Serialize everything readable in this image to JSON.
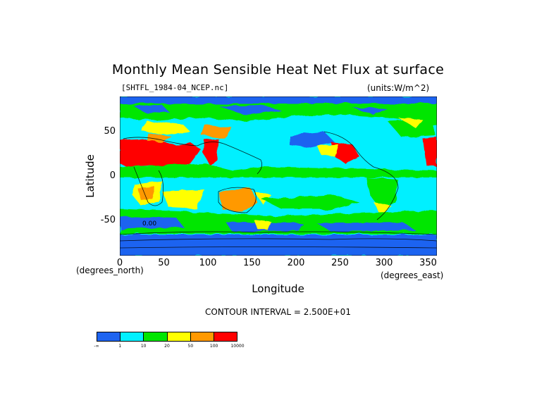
{
  "chart_data": {
    "type": "heatmap",
    "title": "Monthly Mean Sensible Heat Net Flux at surface",
    "filename": "[SHTFL_1984-04_NCEP.nc]",
    "units": "(units:W/m^2)",
    "xlabel": "Longitude",
    "ylabel": "Latitude",
    "x_unit_label": "(degrees_east)",
    "y_unit_label": "(degrees_north)",
    "xlim": [
      0,
      360
    ],
    "ylim": [
      -90,
      90
    ],
    "xticks": [
      "0",
      "50",
      "100",
      "150",
      "200",
      "250",
      "300",
      "350"
    ],
    "yticks": [
      "50",
      "0",
      "-50"
    ],
    "contour_interval": "CONTOUR INTERVAL = 2.500E+01",
    "contour_label": "0.00",
    "colorbar": {
      "colors": [
        "#1e64f0",
        "#00f0ff",
        "#00e600",
        "#ffff00",
        "#ff9900",
        "#ff0000"
      ],
      "labels": [
        "-∞",
        "1",
        "10",
        "20",
        "50",
        "100",
        "10000"
      ]
    }
  }
}
